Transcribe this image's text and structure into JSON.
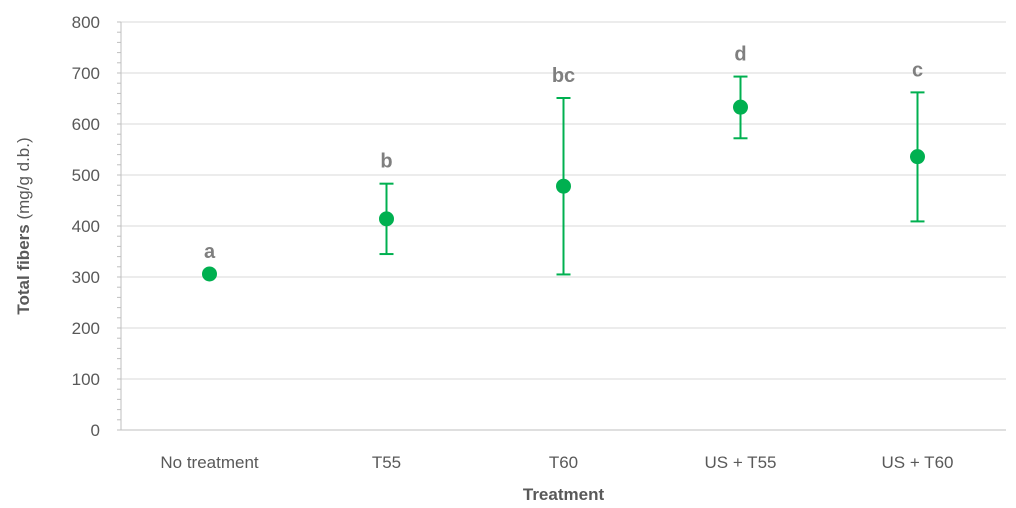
{
  "chart_data": {
    "type": "scatter",
    "categories": [
      "No treatment",
      "T55",
      "T60",
      "US + T55",
      "US + T60"
    ],
    "values": [
      306,
      414,
      478,
      633,
      536
    ],
    "error_low": [
      306,
      345,
      305,
      572,
      409
    ],
    "error_high": [
      306,
      483,
      651,
      693,
      662
    ],
    "significance_labels": [
      "a",
      "b",
      "bc",
      "d",
      "c"
    ],
    "y_ticks": [
      "0",
      "100",
      "200",
      "300",
      "400",
      "500",
      "600",
      "700",
      "800"
    ],
    "ylim": [
      0,
      800
    ],
    "ylabel_bold": "Total fibers",
    "ylabel_unit": " (mg/g d.b.)",
    "xlabel": "Treatment",
    "grid": true,
    "colors": {
      "marker": "#00b050",
      "grid": "#d9d9d9",
      "text": "#595959",
      "significance": "#7f7f7f"
    }
  }
}
